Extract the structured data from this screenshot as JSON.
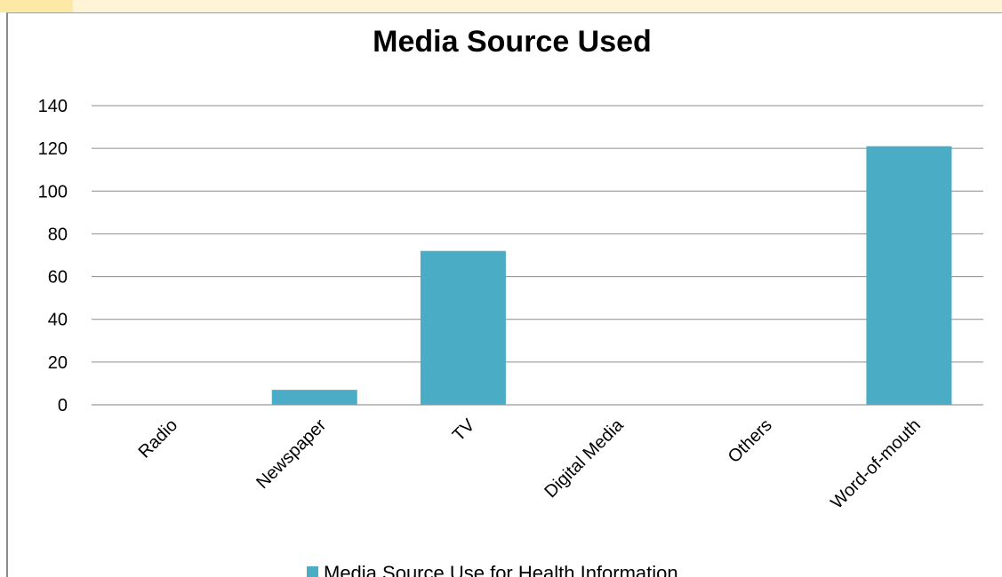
{
  "chart_data": {
    "type": "bar",
    "title": "Media Source Used",
    "xlabel": "",
    "ylabel": "",
    "categories": [
      "Radio",
      "Newspaper",
      "TV",
      "Digital Media",
      "Others",
      "Word-of-mouth"
    ],
    "series": [
      {
        "name": "Media Source Use for Health Information",
        "values": [
          0,
          7,
          72,
          0,
          0,
          121
        ],
        "color": "#4bacc6"
      }
    ],
    "ylim": [
      0,
      140
    ],
    "yticks": [
      0,
      20,
      40,
      60,
      80,
      100,
      120,
      140
    ],
    "grid": true,
    "legend_position": "bottom"
  }
}
